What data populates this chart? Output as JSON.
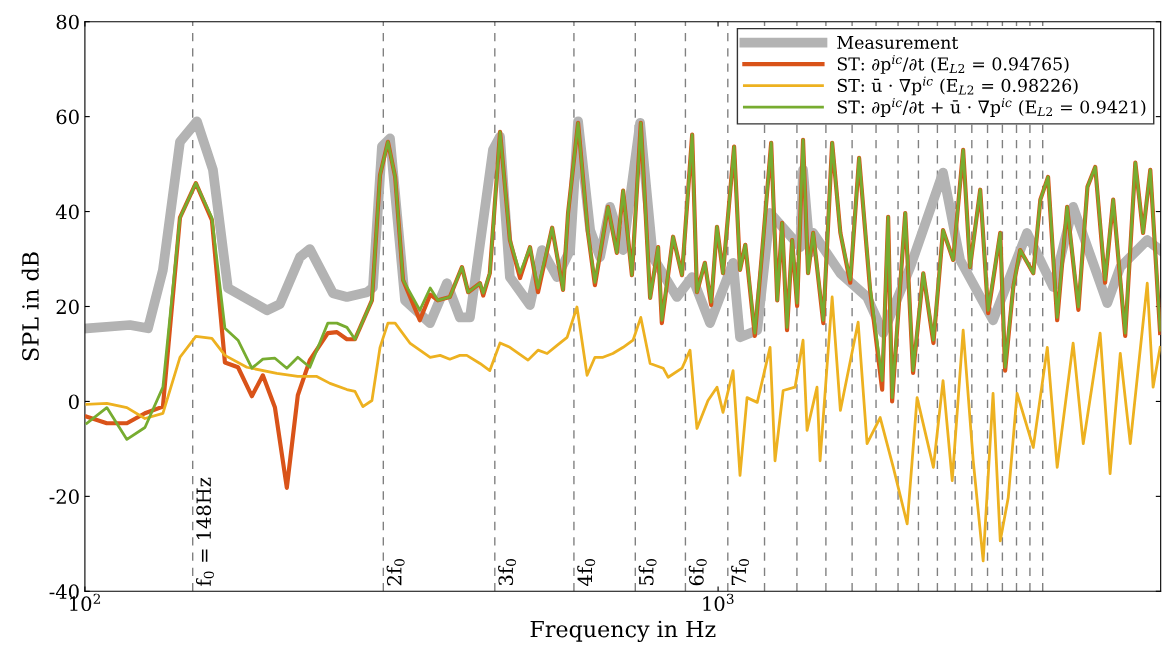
{
  "chart_data": {
    "type": "line",
    "xlabel": "Frequency in Hz",
    "ylabel": "SPL in dB",
    "log": "x",
    "xlim": [
      100,
      5000
    ],
    "xticks": [
      {
        "value": 100,
        "label": "10$^{2}$"
      },
      {
        "value": 1000,
        "label": "10$^{3}$"
      }
    ],
    "ylim": [
      -40,
      80
    ],
    "yticks": [
      -40,
      -20,
      0,
      20,
      40,
      60,
      80
    ],
    "grid": false,
    "legend": "top right",
    "marker": "none",
    "line_style": "solid",
    "series": [
      {
        "name": "Measurement",
        "color": "#b3b3b3",
        "x": [
          100.7,
          117.8,
          125.8,
          132.8,
          141.3,
          150.3,
          159.3,
          168.2,
          193.9,
          203.2,
          218.6,
          226.6,
          246.5,
          259.3,
          279,
          285,
          294.5,
          303.3,
          320.3,
          350.8,
          373,
          391,
          405.6,
          441,
          452.5,
          469,
          504.6,
          527,
          556.8,
          584,
          601,
          628,
          651,
          675,
          708,
          753,
          789,
          861,
          910,
          971,
          1056,
          1083,
          1153,
          1208,
          1348,
          1362,
          1397,
          1413,
          1560,
          1719,
          1823,
          2011,
          2266,
          2411,
          2718,
          3075,
          3383,
          3637,
          4118,
          4317,
          4762,
          4990
        ],
        "values": [
          15.4,
          16.1,
          15.4,
          27.7,
          54.7,
          59,
          48.8,
          23.9,
          19.2,
          20.5,
          30.4,
          32.1,
          22.8,
          22,
          23,
          24,
          53.7,
          55.4,
          21.3,
          16.5,
          24.9,
          17.7,
          17.7,
          53,
          55.8,
          26.2,
          20.3,
          31.9,
          26.2,
          31.9,
          59,
          36.1,
          30.4,
          41,
          31.9,
          58.7,
          30.4,
          22,
          26.2,
          16.5,
          29.2,
          13.5,
          15,
          39.7,
          32.5,
          48.8,
          31.3,
          35.5,
          27,
          22,
          14.4,
          28.3,
          48.2,
          29.8,
          17.1,
          35.5,
          24.1,
          41,
          20.7,
          28.3,
          34,
          31.9
        ]
      },
      {
        "name": "ST: ∂p$^{ic}$/∂t (E$_{L2}$ = 0.94765)",
        "color": "#d95319",
        "x": [
          100.7,
          108.3,
          116.5,
          124.4,
          132.8,
          141.3,
          149.7,
          158.7,
          166.4,
          174.5,
          183.5,
          191,
          199.6,
          208.4,
          216.9,
          226.6,
          241.9,
          250,
          259.3,
          267,
          284,
          292.5,
          301,
          309,
          318,
          338,
          351,
          361,
          377,
          394,
          403,
          420.7,
          425.6,
          436,
          452.5,
          469,
          486.6,
          504.6,
          519.5,
          546.9,
          569,
          579.5,
          601,
          623,
          639,
          670,
          692,
          708,
          731,
          755,
          781,
          804,
          815,
          849,
          877,
          910,
          926,
          953,
          975,
          996,
          1018,
          1060,
          1083,
          1104,
          1143,
          1178,
          1213,
          1240,
          1262,
          1285,
          1309,
          1333,
          1362,
          1387,
          1413,
          1466,
          1514,
          1560,
          1617,
          1670,
          1738,
          1816,
          1856,
          1883,
          1975,
          2032,
          2109,
          2188,
          2266,
          2351,
          2438,
          2500,
          2594,
          2670,
          2790,
          2840,
          2925,
          3000,
          3146,
          3228,
          3320,
          3432,
          3558,
          3707,
          3831,
          3941,
          4085,
          4207,
          4395,
          4560,
          4690,
          4815,
          4990
        ],
        "values": [
          -3.2,
          -4.6,
          -4.6,
          -2.5,
          -1.1,
          38.7,
          46,
          38.2,
          8.2,
          7.2,
          1.1,
          5.5,
          -1.3,
          -18.2,
          1.3,
          8.7,
          14.4,
          14.6,
          13.1,
          13.1,
          21.3,
          47.7,
          54.7,
          47.3,
          25.6,
          17.1,
          22.5,
          21.3,
          22,
          28.3,
          23,
          24.9,
          22.3,
          27,
          56.8,
          34,
          26,
          32.5,
          23,
          36.6,
          23.5,
          39.7,
          58.7,
          35.5,
          24.5,
          41,
          31.3,
          44.4,
          26.6,
          58.7,
          21.8,
          32.5,
          16.5,
          34.7,
          26.6,
          56.2,
          23,
          29.2,
          20.3,
          36.8,
          27,
          53.7,
          27.7,
          33,
          13.8,
          34,
          54.5,
          21.3,
          37.6,
          15,
          34,
          20.1,
          55.1,
          27,
          35.5,
          16.5,
          54.5,
          35.5,
          25,
          51.3,
          23.5,
          2.5,
          38.9,
          0,
          39.7,
          6,
          27,
          12.3,
          36.1,
          29.8,
          53,
          28.3,
          44.6,
          18.6,
          35.5,
          6.5,
          24.1,
          31.9,
          27,
          42.5,
          47.3,
          17.1,
          41,
          19.3,
          45.2,
          49.4,
          25,
          42.5,
          13.8,
          50.3,
          35.5,
          48.8,
          14.4
        ]
      },
      {
        "name": "ST: ū · ∇p$^{ic}$ (E$_{L2}$ = 0.98226)",
        "color": "#edb120",
        "x": [
          100.7,
          108.3,
          116.5,
          124.4,
          132.8,
          141.3,
          149.7,
          158.7,
          166.4,
          180.2,
          201,
          216.9,
          232,
          243.8,
          259.3,
          267,
          274.8,
          284,
          292.5,
          301,
          309,
          326,
          351,
          364,
          377,
          391,
          401,
          420.7,
          436,
          452.5,
          469,
          501,
          519.5,
          537,
          556.8,
          577.5,
          598.6,
          621,
          639,
          658,
          682,
          708,
          734,
          755,
          781,
          819,
          834,
          877,
          903,
          926,
          964,
          996,
          1018,
          1056,
          1083,
          1111,
          1153,
          1208,
          1230,
          1267,
          1323,
          1362,
          1382,
          1433,
          1449,
          1514,
          1560,
          1664,
          1719,
          1803,
          1891,
          1989,
          2062,
          2188,
          2266,
          2343,
          2438,
          2529,
          2622,
          2718,
          2790,
          2872,
          2966,
          3146,
          3311,
          3432,
          3637,
          3773,
          4012,
          4160,
          4317,
          4477,
          4762,
          4864,
          4990
        ],
        "values": [
          -0.6,
          -0.4,
          -1.3,
          -3.6,
          -2.5,
          9.3,
          13.7,
          13.3,
          9.7,
          7.2,
          5.9,
          5.3,
          5.3,
          3.8,
          2.5,
          2.1,
          -1.1,
          0.2,
          11.4,
          16.5,
          16.5,
          12.3,
          9.3,
          9.7,
          8.9,
          9.7,
          9.7,
          8,
          6.5,
          12.3,
          11.4,
          8.7,
          10.8,
          10.1,
          11.8,
          13.5,
          19.9,
          5.5,
          9.3,
          9.3,
          10.1,
          11.4,
          12.9,
          17.7,
          8,
          7,
          5.1,
          7,
          10.8,
          -5.7,
          0.2,
          3,
          -2.3,
          6.5,
          -15.6,
          0.8,
          -0.2,
          11.4,
          -12.5,
          2.3,
          3,
          12.9,
          -6.1,
          3,
          -12.5,
          22,
          -1.9,
          16.7,
          -8.9,
          -3.4,
          -13.9,
          -25.8,
          0.8,
          -13.9,
          4.4,
          -16.7,
          15,
          -12.5,
          -33.6,
          1.7,
          -29.4,
          -20.3,
          1.7,
          -9.7,
          11.4,
          -13.9,
          12.3,
          -8.9,
          14.4,
          -15.2,
          10.1,
          -8.9,
          24.9,
          3,
          11.4
        ]
      },
      {
        "name": "ST: ∂p$^{ic}$/∂t + ū · ∇p$^{ic}$ (E$_{L2}$ = 0.9421)",
        "color": "#77ac30",
        "x": [
          100.7,
          108.3,
          116.5,
          124.4,
          132.8,
          141.3,
          149.7,
          158.7,
          166.4,
          174.5,
          183.5,
          191,
          199.6,
          208.4,
          216.9,
          226.6,
          241.9,
          250,
          259.3,
          267,
          284,
          292.5,
          301,
          309,
          318,
          338,
          351,
          361,
          377,
          394,
          403,
          420.7,
          425.6,
          436,
          452.5,
          469,
          486.6,
          504.6,
          519.5,
          546.9,
          569,
          579.5,
          601,
          623,
          639,
          670,
          692,
          708,
          731,
          755,
          781,
          804,
          815,
          849,
          877,
          910,
          926,
          953,
          975,
          996,
          1018,
          1060,
          1083,
          1104,
          1143,
          1178,
          1213,
          1240,
          1262,
          1285,
          1309,
          1333,
          1362,
          1387,
          1413,
          1466,
          1514,
          1560,
          1617,
          1670,
          1738,
          1816,
          1856,
          1883,
          1975,
          2032,
          2109,
          2188,
          2266,
          2351,
          2438,
          2500,
          2594,
          2670,
          2790,
          2840,
          2925,
          3000,
          3146,
          3228,
          3320,
          3432,
          3558,
          3707,
          3831,
          3941,
          4085,
          4207,
          4395,
          4560,
          4690,
          4815,
          4990
        ],
        "values": [
          -4.6,
          -1.3,
          -8,
          -5.5,
          3,
          38.7,
          46,
          38.7,
          15.4,
          12.9,
          7,
          8.9,
          9.1,
          7,
          9.3,
          7.2,
          16.5,
          16.5,
          15.6,
          13.1,
          21.3,
          47.7,
          54.7,
          47.3,
          25.6,
          19.2,
          23.9,
          21.3,
          22,
          28.3,
          23,
          24.9,
          22.8,
          27,
          56.8,
          34,
          27,
          32.5,
          23.9,
          36.6,
          23.5,
          39.7,
          58.7,
          35.5,
          25.1,
          41,
          31.3,
          44.4,
          26.6,
          58.7,
          21.8,
          32.5,
          17.1,
          34.7,
          26.6,
          56.2,
          23,
          29.2,
          20.9,
          36.8,
          27,
          53.7,
          27.7,
          33,
          14.4,
          34,
          54.5,
          21.3,
          37.6,
          15.6,
          34,
          20.7,
          55.1,
          27,
          35.5,
          17.1,
          54.5,
          35.5,
          25.6,
          51.3,
          24.1,
          4.4,
          38.9,
          0.8,
          39.7,
          6.5,
          27,
          12.9,
          36.1,
          29.8,
          53,
          28.3,
          44.6,
          19.2,
          35.5,
          7.2,
          24.1,
          31.9,
          27,
          42.5,
          47.3,
          17.7,
          41,
          19.9,
          45.2,
          49.4,
          25.6,
          42.5,
          14.4,
          50.3,
          35.5,
          48.8,
          15
        ]
      }
    ],
    "ref_lines": [
      {
        "axis": "x",
        "value": 148,
        "label": "f$_{0}$ = 148Hz",
        "color": "#808080",
        "line_style": "dashed"
      },
      {
        "axis": "x",
        "value": 296,
        "label": "2f$_{0}$",
        "color": "#808080",
        "line_style": "dashed"
      },
      {
        "axis": "x",
        "value": 444,
        "label": "3f$_{0}$",
        "color": "#808080",
        "line_style": "dashed"
      },
      {
        "axis": "x",
        "value": 592,
        "label": "4f$_{0}$",
        "color": "#808080",
        "line_style": "dashed"
      },
      {
        "axis": "x",
        "value": 740,
        "label": "5f$_{0}$",
        "color": "#808080",
        "line_style": "dashed"
      },
      {
        "axis": "x",
        "value": 888,
        "label": "6f$_{0}$",
        "color": "#808080",
        "line_style": "dashed"
      },
      {
        "axis": "x",
        "value": 1036,
        "label": "7f$_{0}$",
        "color": "#808080",
        "line_style": "dashed"
      },
      {
        "axis": "x",
        "value": 1184,
        "label": null,
        "color": "#808080",
        "line_style": "dashed"
      },
      {
        "axis": "x",
        "value": 1332,
        "label": null,
        "color": "#808080",
        "line_style": "dashed"
      },
      {
        "axis": "x",
        "value": 1480,
        "label": null,
        "color": "#808080",
        "line_style": "dashed"
      },
      {
        "axis": "x",
        "value": 1628,
        "label": null,
        "color": "#808080",
        "line_style": "dashed"
      },
      {
        "axis": "x",
        "value": 1776,
        "label": null,
        "color": "#808080",
        "line_style": "dashed"
      },
      {
        "axis": "x",
        "value": 1924,
        "label": null,
        "color": "#808080",
        "line_style": "dashed"
      },
      {
        "axis": "x",
        "value": 2072,
        "label": null,
        "color": "#808080",
        "line_style": "dashed"
      },
      {
        "axis": "x",
        "value": 2220,
        "label": null,
        "color": "#808080",
        "line_style": "dashed"
      },
      {
        "axis": "x",
        "value": 2368,
        "label": null,
        "color": "#808080",
        "line_style": "dashed"
      },
      {
        "axis": "x",
        "value": 2516,
        "label": null,
        "color": "#808080",
        "line_style": "dashed"
      },
      {
        "axis": "x",
        "value": 2664,
        "label": null,
        "color": "#808080",
        "line_style": "dashed"
      },
      {
        "axis": "x",
        "value": 2812,
        "label": null,
        "color": "#808080",
        "line_style": "dashed"
      },
      {
        "axis": "x",
        "value": 2960,
        "label": null,
        "color": "#808080",
        "line_style": "dashed"
      },
      {
        "axis": "x",
        "value": 3108,
        "label": null,
        "color": "#808080",
        "line_style": "dashed"
      },
      {
        "axis": "x",
        "value": 3256,
        "label": null,
        "color": "#808080",
        "line_style": "dashed"
      }
    ]
  }
}
